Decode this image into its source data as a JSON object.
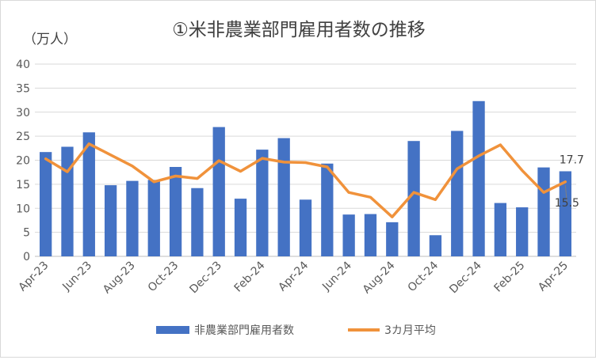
{
  "chart_data": {
    "type": "bar",
    "title": "①米非農業部門雇用者数の推移",
    "ylabel": "（万人）",
    "xlabel": "",
    "ylim": [
      0,
      40
    ],
    "yticks": [
      "0",
      "5",
      "10",
      "15",
      "20",
      "25",
      "30",
      "35",
      "40"
    ],
    "grid": true,
    "legend_position": "bottom",
    "categories": [
      "Apr-23",
      "May-23",
      "Jun-23",
      "Jul-23",
      "Aug-23",
      "Sep-23",
      "Oct-23",
      "Nov-23",
      "Dec-23",
      "Jan-24",
      "Feb-24",
      "Mar-24",
      "Apr-24",
      "May-24",
      "Jun-24",
      "Jul-24",
      "Aug-24",
      "Sep-24",
      "Oct-24",
      "Nov-24",
      "Dec-24",
      "Jan-25",
      "Feb-25",
      "Mar-25",
      "Apr-25"
    ],
    "x_tick_labels": [
      "Apr-23",
      "",
      "Jun-23",
      "",
      "Aug-23",
      "",
      "Oct-23",
      "",
      "Dec-23",
      "",
      "Feb-24",
      "",
      "Apr-24",
      "",
      "Jun-24",
      "",
      "Aug-24",
      "",
      "Oct-24",
      "",
      "Dec-24",
      "",
      "Feb-25",
      "",
      "Apr-25"
    ],
    "series": [
      {
        "name": "非農業部門雇用者数",
        "type": "bar",
        "color": "#4472c4",
        "values": [
          21.7,
          22.8,
          25.8,
          14.8,
          15.7,
          15.9,
          18.6,
          14.2,
          26.9,
          12.0,
          22.2,
          24.6,
          11.8,
          19.3,
          8.7,
          8.8,
          7.1,
          24.0,
          4.4,
          26.1,
          32.3,
          11.1,
          10.2,
          18.5,
          17.7
        ]
      },
      {
        "name": "3カ月平均",
        "type": "line",
        "color": "#f0923b",
        "values": [
          20.3,
          17.6,
          23.4,
          21.1,
          18.8,
          15.5,
          16.7,
          16.2,
          19.9,
          17.7,
          20.4,
          19.6,
          19.5,
          18.6,
          13.3,
          12.3,
          8.2,
          13.3,
          11.8,
          18.2,
          20.9,
          23.2,
          17.9,
          13.3,
          15.5
        ]
      }
    ],
    "annotations": [
      {
        "text": "17.7",
        "series": 0,
        "index": 24
      },
      {
        "text": "15.5",
        "series": 1,
        "index": 24
      }
    ]
  }
}
